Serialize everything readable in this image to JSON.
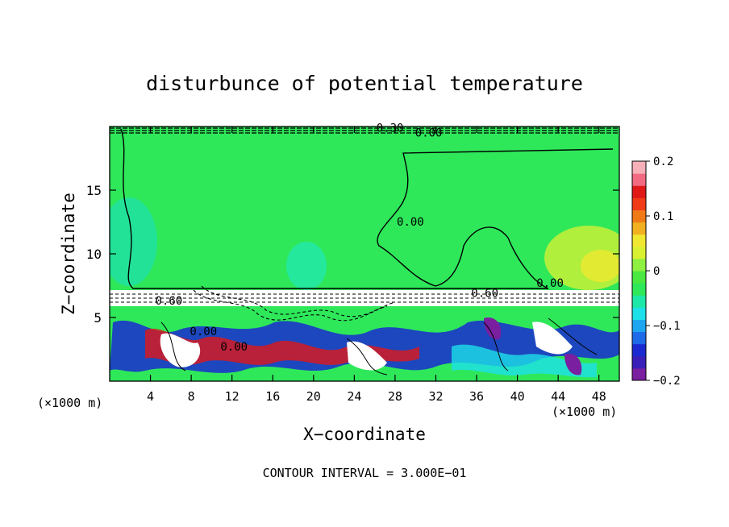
{
  "chart_data": {
    "type": "heatmap",
    "title": "disturbunce of potential temperature",
    "xlabel": "X−coordinate",
    "ylabel": "Z−coordinate",
    "x_unit_left": "(×1000 m)",
    "x_unit_right": "(×1000 m)",
    "xlim": [
      0,
      50
    ],
    "ylim": [
      0,
      20
    ],
    "x_ticks": [
      4,
      8,
      12,
      16,
      20,
      24,
      28,
      32,
      36,
      40,
      44,
      48
    ],
    "x_tick_labels": [
      "4",
      "8",
      "12",
      "16",
      "20",
      "24",
      "28",
      "32",
      "36",
      "40",
      "44",
      "48"
    ],
    "y_ticks": [
      5,
      10,
      15
    ],
    "y_tick_labels": [
      "5",
      "10",
      "15"
    ],
    "colorbar": {
      "range": [
        -0.2,
        0.2
      ],
      "tick_values": [
        0.2,
        0.1,
        0,
        -0.1,
        -0.2
      ],
      "tick_labels": [
        "0.2",
        "0.1",
        "0",
        "−0.1",
        "−0.2"
      ],
      "colors": [
        "#7a1fa0",
        "#3a1fb8",
        "#1a2ad0",
        "#1e6ae8",
        "#1ea6f0",
        "#1ee0e8",
        "#1ee8a8",
        "#2ee85a",
        "#4ae840",
        "#8ef040",
        "#d8f030",
        "#f0e830",
        "#f0b020",
        "#f07a18",
        "#f03a18",
        "#e01818",
        "#f26a82",
        "#f7b0b8"
      ]
    },
    "contour_interval_text": "CONTOUR INTERVAL = 3.000E−01",
    "contour_labels": [
      {
        "text": "0.00",
        "x": 29.5,
        "y": 12.2
      },
      {
        "text": "0.00",
        "x": 43.2,
        "y": 7.4
      },
      {
        "text": "0.00",
        "x": 31.3,
        "y": 19.2
      },
      {
        "text": "0.00",
        "x": 9.2,
        "y": 3.6
      },
      {
        "text": "0.00",
        "x": 12.2,
        "y": 2.4
      },
      {
        "text": "0.60",
        "x": 5.8,
        "y": 6.0
      },
      {
        "text": "0.60",
        "x": 36.8,
        "y": 6.6
      },
      {
        "text": "0.30",
        "x": 27.5,
        "y": 19.6
      }
    ],
    "grid": false,
    "field_regions": [
      {
        "region": "upper layer z 7-19",
        "value": 0.0,
        "note": "near zero (green)"
      },
      {
        "region": "right side x 42-50, z 7-12",
        "value": 0.06,
        "note": "slightly positive (yellow-green)"
      },
      {
        "region": "left x 0-4, z 8-12",
        "value": -0.04,
        "note": "slightly negative (cyan)"
      },
      {
        "region": "inversion band z 5.8-7",
        "value": 0.3,
        "note": "saturated positive (white) with dense contours"
      },
      {
        "region": "lower layer z 0-5.5",
        "value": 0.0,
        "note": "turbulent mix of -0.2 to +0.2"
      }
    ]
  }
}
